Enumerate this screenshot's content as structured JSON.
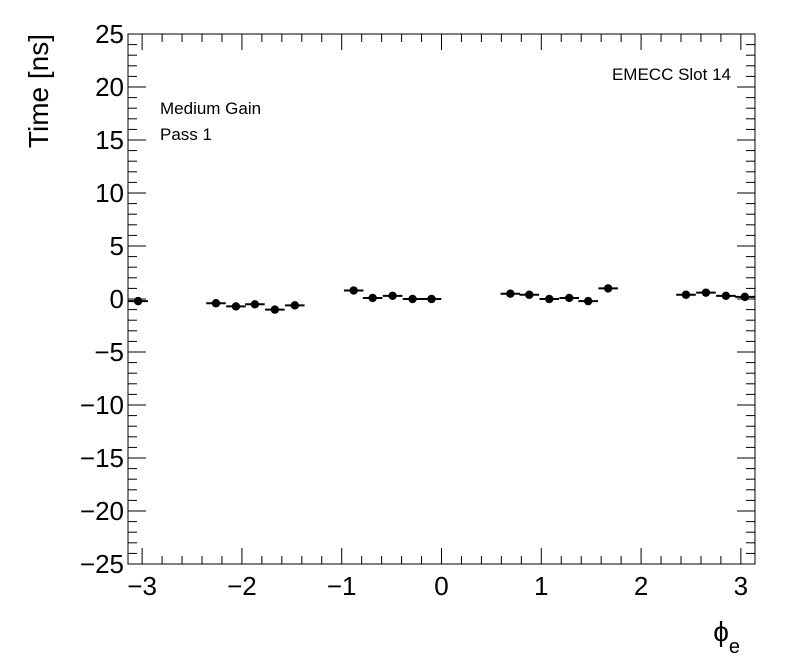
{
  "chart_data": {
    "type": "scatter",
    "ylabel": "Time [ns]",
    "xlabel_main": "ϕ",
    "xlabel_sub": "e",
    "xlim": [
      -3.1416,
      3.1416
    ],
    "ylim": [
      -25,
      25
    ],
    "x_ticks": [
      -3,
      -2,
      -1,
      0,
      1,
      2,
      3
    ],
    "x_tick_labels": [
      "−3",
      "−2",
      "−1",
      "0",
      "1",
      "2",
      "3"
    ],
    "y_ticks": [
      -25,
      -20,
      -15,
      -10,
      -5,
      0,
      5,
      10,
      15,
      20,
      25
    ],
    "y_tick_labels": [
      "−25",
      "−20",
      "−15",
      "−10",
      "−5",
      "0",
      "5",
      "10",
      "15",
      "20",
      "25"
    ],
    "grid": false,
    "annotations": {
      "top_right": "EMECC Slot 14",
      "line1": "Medium Gain",
      "line2": "Pass 1"
    },
    "bin_half_width": 0.098,
    "points": [
      {
        "x": -3.04,
        "y": -0.2
      },
      {
        "x": -2.26,
        "y": -0.4
      },
      {
        "x": -2.06,
        "y": -0.7
      },
      {
        "x": -1.87,
        "y": -0.5
      },
      {
        "x": -1.67,
        "y": -1.0
      },
      {
        "x": -1.47,
        "y": -0.6
      },
      {
        "x": -0.88,
        "y": 0.8
      },
      {
        "x": -0.69,
        "y": 0.1
      },
      {
        "x": -0.49,
        "y": 0.3
      },
      {
        "x": -0.29,
        "y": 0.0
      },
      {
        "x": -0.1,
        "y": 0.0
      },
      {
        "x": 0.69,
        "y": 0.5
      },
      {
        "x": 0.88,
        "y": 0.4
      },
      {
        "x": 1.08,
        "y": 0.0
      },
      {
        "x": 1.28,
        "y": 0.1
      },
      {
        "x": 1.47,
        "y": -0.2
      },
      {
        "x": 1.67,
        "y": 1.0
      },
      {
        "x": 2.45,
        "y": 0.4
      },
      {
        "x": 2.65,
        "y": 0.6
      },
      {
        "x": 2.85,
        "y": 0.3
      },
      {
        "x": 3.04,
        "y": 0.2
      }
    ]
  }
}
